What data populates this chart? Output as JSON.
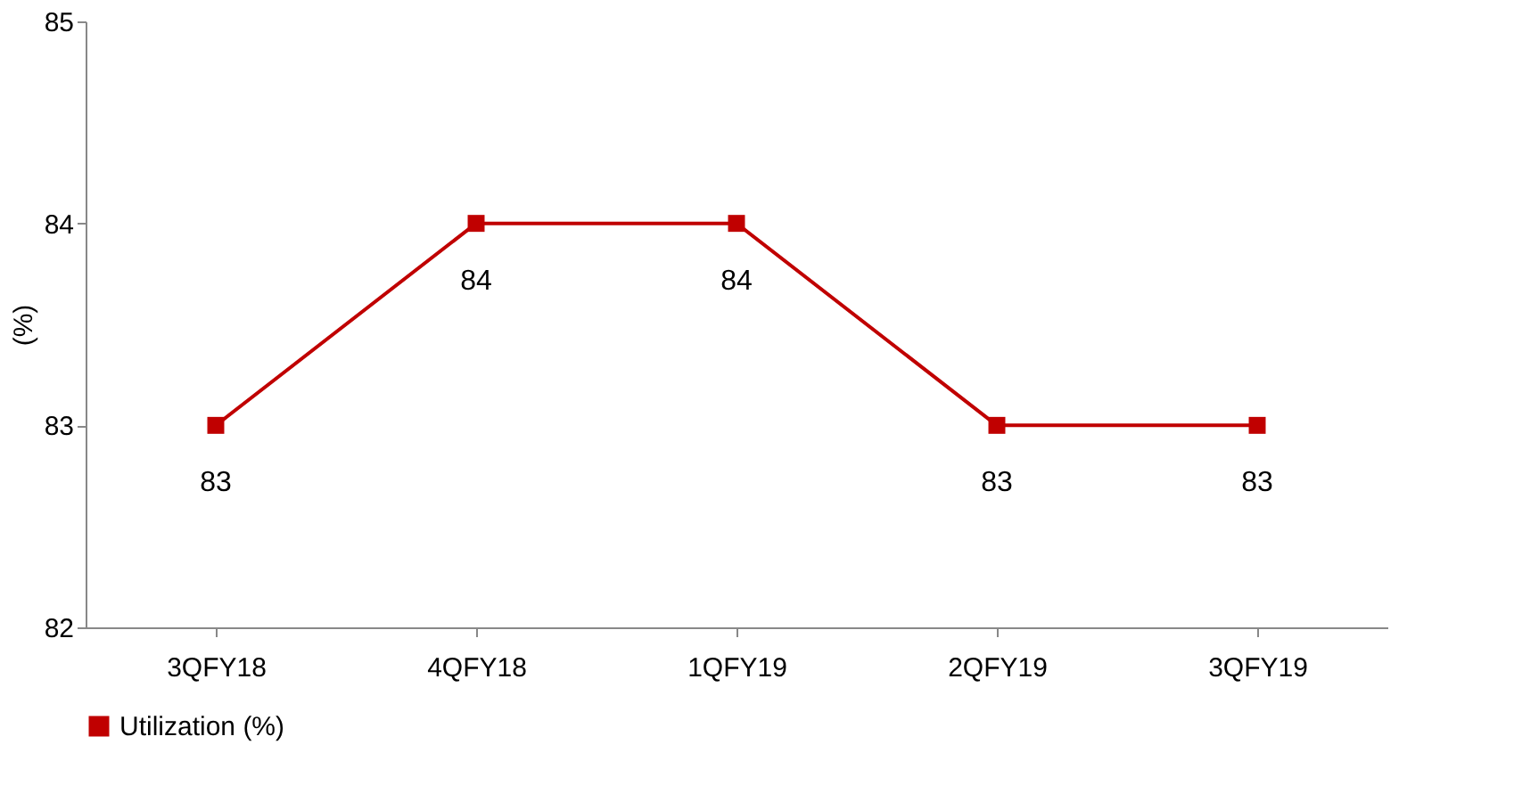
{
  "chart_data": {
    "type": "line",
    "categories": [
      "3QFY18",
      "4QFY18",
      "1QFY19",
      "2QFY19",
      "3QFY19"
    ],
    "series": [
      {
        "name": "Utilization (%)",
        "color": "#c00000",
        "values": [
          83,
          84,
          84,
          83,
          83
        ]
      }
    ],
    "ylabel": "(%)",
    "ylim": [
      82,
      85
    ],
    "yticks": [
      82,
      83,
      84,
      85
    ],
    "grid": false,
    "legend": "bottom",
    "marker": "square",
    "line_style": "solid",
    "data_labels": true
  }
}
